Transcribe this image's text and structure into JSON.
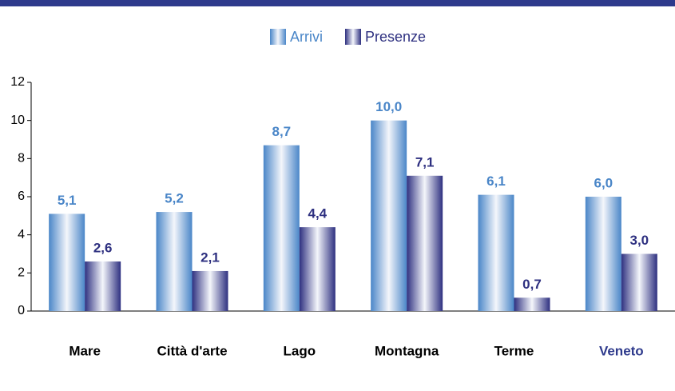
{
  "chart_data": {
    "type": "bar",
    "categories": [
      "Mare",
      "Città d'arte",
      "Lago",
      "Montagna",
      "Terme",
      "Veneto"
    ],
    "series": [
      {
        "name": "Arrivi",
        "color": "#4a86c8",
        "values": [
          5.1,
          5.2,
          8.7,
          10.0,
          6.1,
          6.0
        ],
        "value_labels": [
          "5,1",
          "5,2",
          "8,7",
          "10,0",
          "6,1",
          "6,0"
        ]
      },
      {
        "name": "Presenze",
        "color": "#2e3080",
        "values": [
          2.6,
          2.1,
          4.4,
          7.1,
          0.7,
          3.0
        ],
        "value_labels": [
          "2,6",
          "2,1",
          "4,4",
          "7,1",
          "0,7",
          "3,0"
        ]
      }
    ],
    "ylim": [
      0,
      12
    ],
    "yticks": [
      0,
      2,
      4,
      6,
      8,
      10,
      12
    ],
    "legend": "top"
  }
}
